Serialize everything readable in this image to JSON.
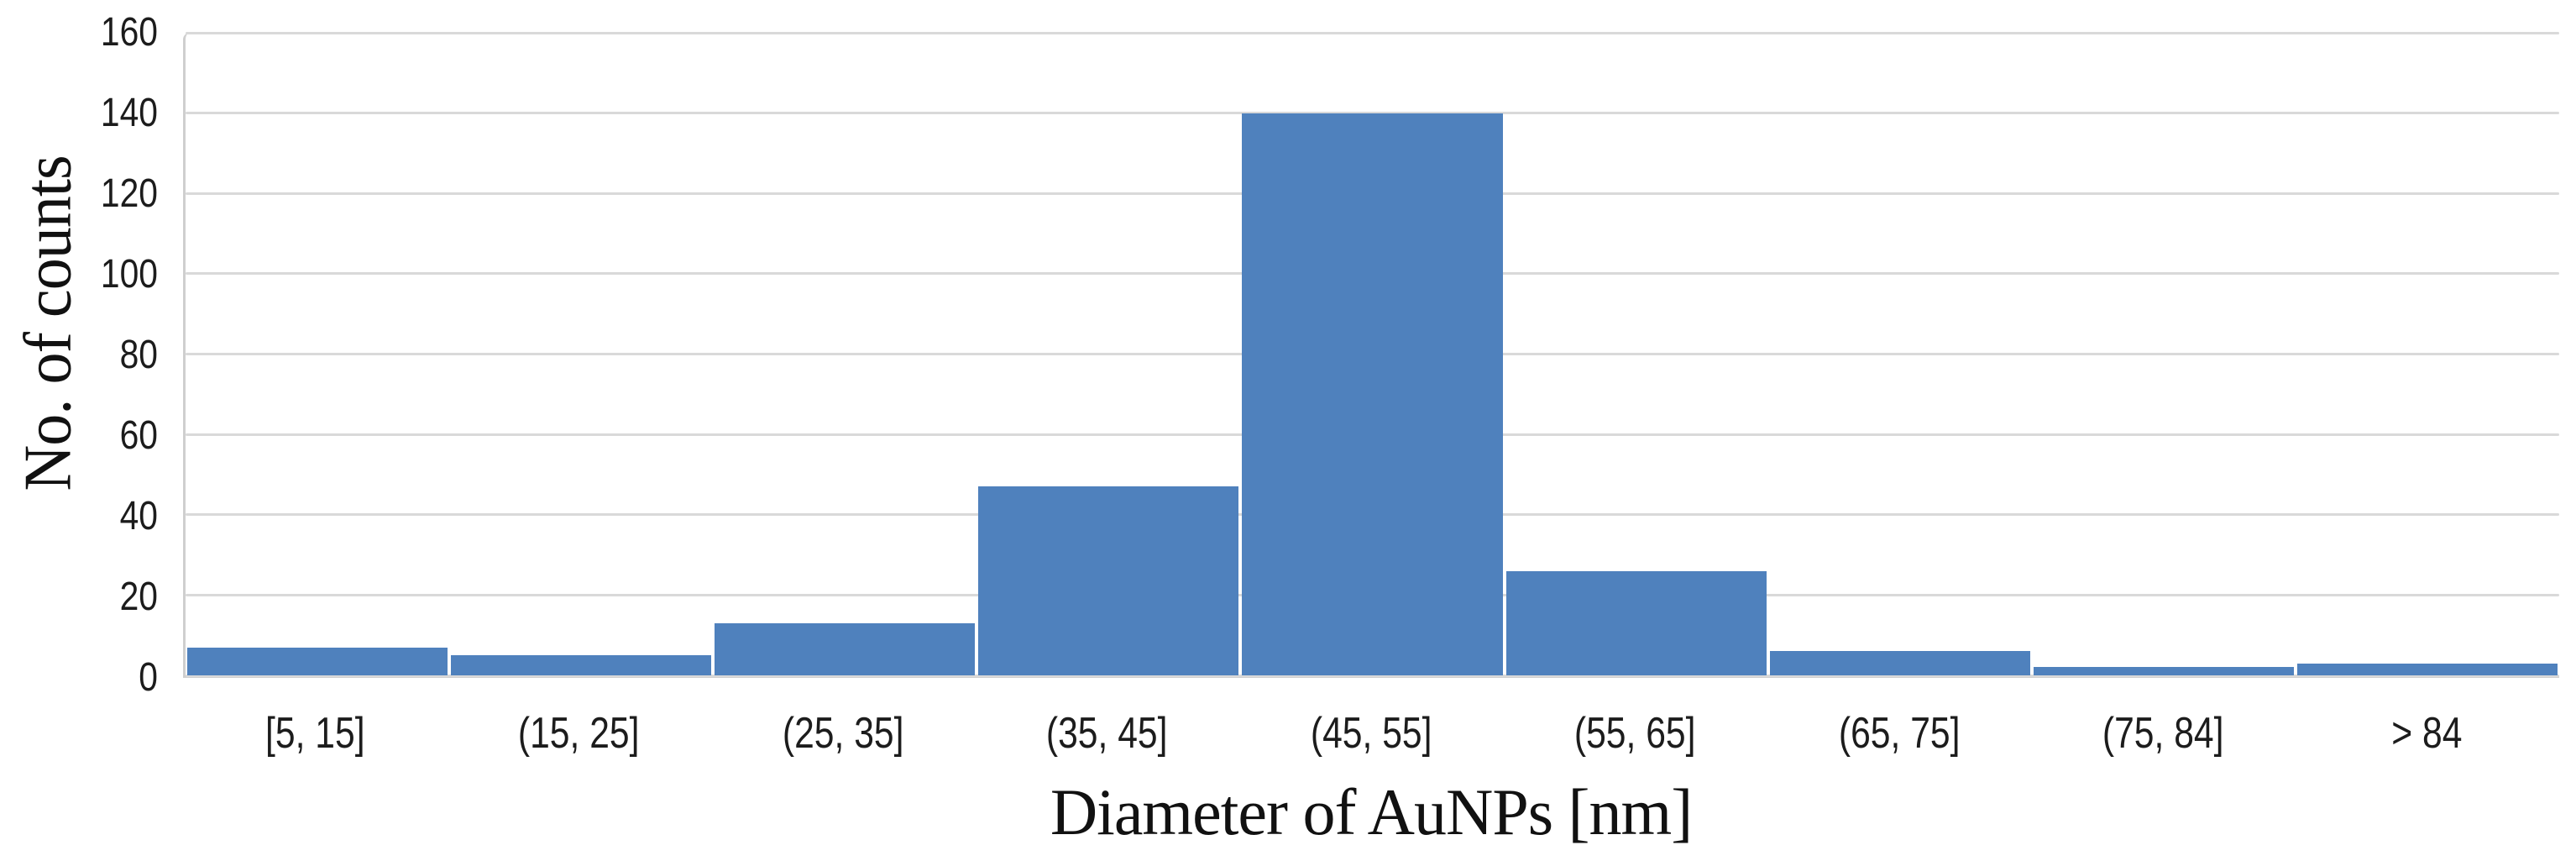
{
  "chart_data": {
    "type": "bar",
    "subtype": "histogram",
    "categories": [
      "[5, 15]",
      "(15, 25]",
      "(25, 35]",
      "(35, 45]",
      "(45, 55]",
      "(55, 65]",
      "(65, 75]",
      "(75, 84]",
      "> 84"
    ],
    "values": [
      7,
      5,
      13,
      47,
      140,
      26,
      6,
      2,
      3
    ],
    "xlabel": "Diameter of AuNPs [nm]",
    "ylabel": "No. of counts",
    "ylim": [
      0,
      160
    ],
    "yticks": [
      0,
      20,
      40,
      60,
      80,
      100,
      120,
      140,
      160
    ],
    "grid": "horizontal-only",
    "legend_position": "none",
    "colors": {
      "bar_fill": "#4f81bd",
      "gridline": "#d9d9d9",
      "axis_line": "#cfcfcf",
      "tick_text": "#1c1c1c",
      "title_text": "#111111",
      "background": "#ffffff"
    }
  }
}
